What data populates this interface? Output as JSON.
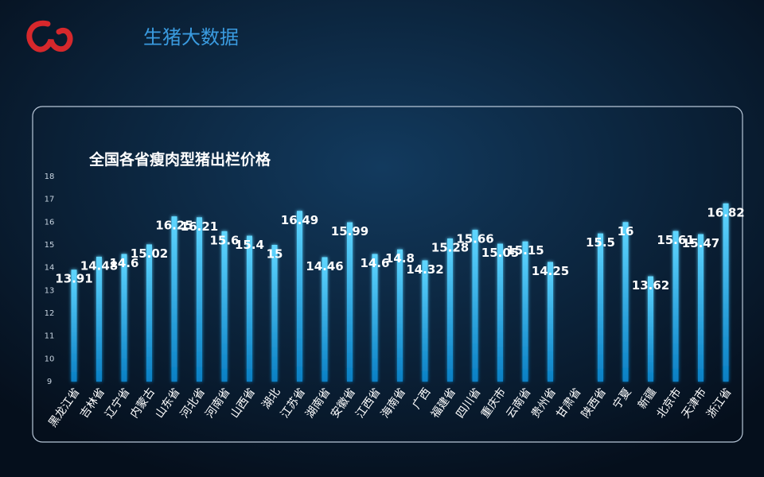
{
  "header": {
    "title": "生猪大数据"
  },
  "chart_data": {
    "type": "bar",
    "title": "全国各省瘦肉型猪出栏价格",
    "categories": [
      "黑龙江省",
      "吉林省",
      "辽宁省",
      "内蒙古",
      "山东省",
      "河北省",
      "河南省",
      "山西省",
      "湖北",
      "江苏省",
      "湖南省",
      "安徽省",
      "江西省",
      "海南省",
      "广西",
      "福建省",
      "四川省",
      "重庆市",
      "云南省",
      "贵州省",
      "甘肃省",
      "陕西省",
      "宁夏",
      "新疆",
      "北京市",
      "天津市",
      "浙江省"
    ],
    "values": [
      13.91,
      14.48,
      14.6,
      15.02,
      16.25,
      16.21,
      15.6,
      15.4,
      15,
      16.49,
      14.46,
      15.99,
      14.6,
      14.8,
      14.32,
      15.28,
      15.66,
      15.05,
      15.15,
      14.25,
      null,
      15.5,
      16,
      13.62,
      15.61,
      15.47,
      16.82
    ],
    "color": "#1aa8e8",
    "ylim": [
      9,
      18
    ],
    "yticks": [
      9,
      10,
      11,
      12,
      13,
      14,
      15,
      16,
      17,
      18
    ]
  }
}
